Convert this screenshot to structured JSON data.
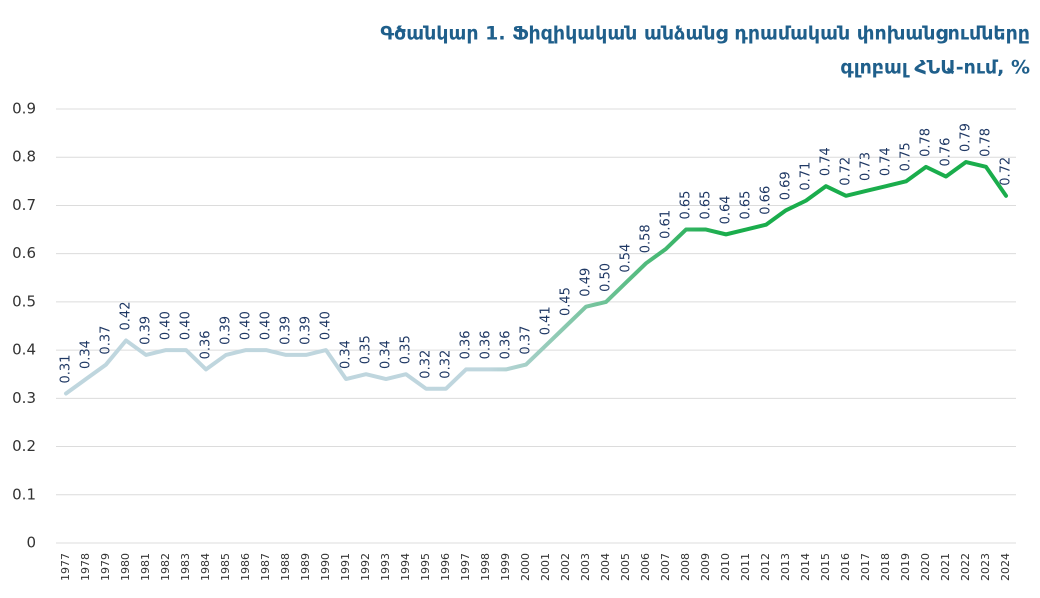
{
  "chart_data": {
    "type": "line",
    "title": [
      "Գծանկար 1. Ֆիզիկական անձանց դրամական փոխանցումները",
      "գլոբալ ՀՆԱ-ում, %"
    ],
    "categories": [
      "1977",
      "1978",
      "1979",
      "1980",
      "1981",
      "1982",
      "1983",
      "1984",
      "1985",
      "1986",
      "1987",
      "1988",
      "1989",
      "1990",
      "1991",
      "1992",
      "1993",
      "1994",
      "1995",
      "1996",
      "1997",
      "1998",
      "1999",
      "2000",
      "2001",
      "2002",
      "2003",
      "2004",
      "2005",
      "2006",
      "2007",
      "2008",
      "2009",
      "2010",
      "2011",
      "2012",
      "2013",
      "2014",
      "2015",
      "2016",
      "2017",
      "2018",
      "2019",
      "2020",
      "2021",
      "2022",
      "2023",
      "2024"
    ],
    "values": [
      0.31,
      0.34,
      0.37,
      0.42,
      0.39,
      0.4,
      0.4,
      0.36,
      0.39,
      0.4,
      0.4,
      0.39,
      0.39,
      0.4,
      0.34,
      0.35,
      0.34,
      0.35,
      0.32,
      0.32,
      0.36,
      0.36,
      0.36,
      0.37,
      0.41,
      0.45,
      0.49,
      0.5,
      0.54,
      0.58,
      0.61,
      0.65,
      0.65,
      0.64,
      0.65,
      0.66,
      0.69,
      0.71,
      0.74,
      0.72,
      0.73,
      0.74,
      0.75,
      0.78,
      0.76,
      0.79,
      0.78,
      0.72
    ],
    "value_labels": [
      "0.31",
      "0.34",
      "0.37",
      "0.42",
      "0.39",
      "0.40",
      "0.40",
      "0.36",
      "0.39",
      "0.40",
      "0.40",
      "0.39",
      "0.39",
      "0.40",
      "0.34",
      "0.35",
      "0.34",
      "0.35",
      "0.32",
      "0.32",
      "0.36",
      "0.36",
      "0.36",
      "0.37",
      "0.41",
      "0.45",
      "0.49",
      "0.50",
      "0.54",
      "0.58",
      "0.61",
      "0.65",
      "0.65",
      "0.64",
      "0.65",
      "0.66",
      "0.69",
      "0.71",
      "0.74",
      "0.72",
      "0.73",
      "0.74",
      "0.75",
      "0.78",
      "0.76",
      "0.79",
      "0.78",
      "0.72"
    ],
    "colors": [
      "#bfd6de",
      "#1aad4c"
    ],
    "ylim": [
      0,
      0.9
    ],
    "yticks": [
      0,
      0.1,
      0.2,
      0.3,
      0.4,
      0.5,
      0.6,
      0.7,
      0.8,
      0.9
    ],
    "grid": true
  }
}
